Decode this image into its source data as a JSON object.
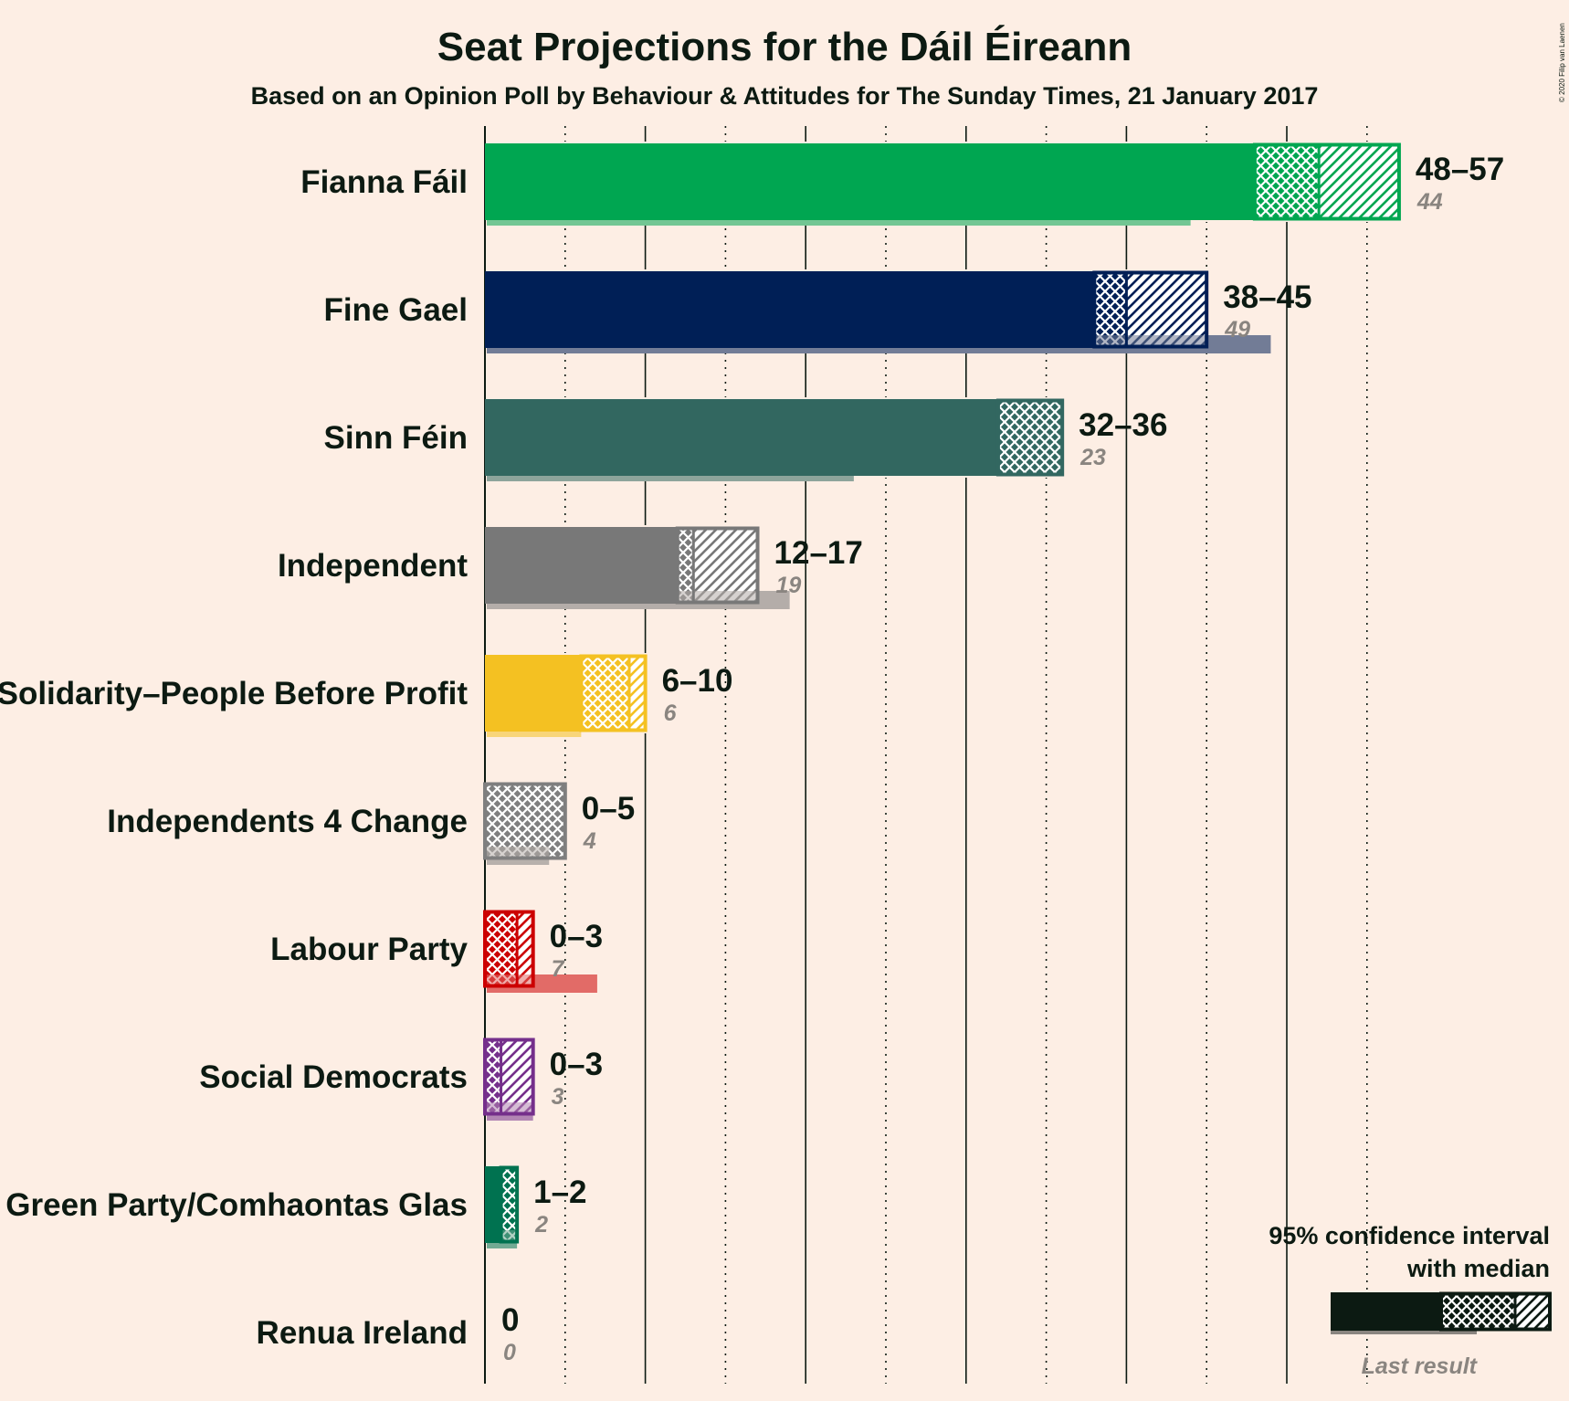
{
  "chart_data": {
    "type": "bar",
    "title": "Seat Projections for the Dáil Éireann",
    "subtitle": "Based on an Opinion Poll by Behaviour & Attitudes for The Sunday Times, 21 January 2017",
    "copyright": "© 2020 Filip van Laenen",
    "xlim": [
      0,
      57
    ],
    "x_ticks_solid": [
      0,
      10,
      20,
      30,
      40,
      50
    ],
    "x_ticks_dotted": [
      5,
      15,
      25,
      35,
      45,
      55
    ],
    "grid": true,
    "legend_position": "bottom-right",
    "series": [
      {
        "name": "Fianna Fáil",
        "color": "#00a651",
        "low": 48,
        "median": 52,
        "high": 57,
        "last": 44,
        "range_label": "48–57",
        "last_label": "44"
      },
      {
        "name": "Fine Gael",
        "color": "#001f56",
        "low": 38,
        "median": 40,
        "high": 45,
        "last": 49,
        "range_label": "38–45",
        "last_label": "49"
      },
      {
        "name": "Sinn Féin",
        "color": "#326760",
        "low": 32,
        "median": 36,
        "high": 36,
        "last": 23,
        "range_label": "32–36",
        "last_label": "23"
      },
      {
        "name": "Independent",
        "color": "#787878",
        "low": 12,
        "median": 13,
        "high": 17,
        "last": 19,
        "range_label": "12–17",
        "last_label": "19"
      },
      {
        "name": "Solidarity–People Before Profit",
        "color": "#f4c122",
        "low": 6,
        "median": 9,
        "high": 10,
        "last": 6,
        "range_label": "6–10",
        "last_label": "6"
      },
      {
        "name": "Independents 4 Change",
        "color": "#7f7f7f",
        "low": 0,
        "median": 5,
        "high": 5,
        "last": 4,
        "range_label": "0–5",
        "last_label": "4"
      },
      {
        "name": "Labour Party",
        "color": "#cc0000",
        "low": 0,
        "median": 2,
        "high": 3,
        "last": 7,
        "range_label": "0–3",
        "last_label": "7"
      },
      {
        "name": "Social Democrats",
        "color": "#752f8b",
        "low": 0,
        "median": 1,
        "high": 3,
        "last": 3,
        "range_label": "0–3",
        "last_label": "3"
      },
      {
        "name": "Green Party/Comhaontas Glas",
        "color": "#007250",
        "low": 1,
        "median": 2,
        "high": 2,
        "last": 2,
        "range_label": "1–2",
        "last_label": "2"
      },
      {
        "name": "Renua Ireland",
        "color": "#ff6600",
        "low": 0,
        "median": 0,
        "high": 0,
        "last": 0,
        "range_label": "0",
        "last_label": "0"
      }
    ],
    "legend": {
      "line1": "95% confidence interval",
      "line2": "with median",
      "last_result": "Last result",
      "color": "#0c1a12",
      "last_color": "#8a8580"
    }
  }
}
